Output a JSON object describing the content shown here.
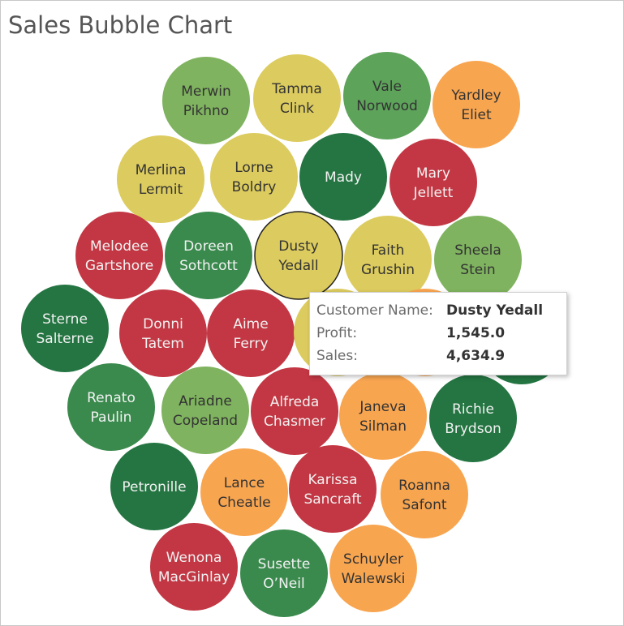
{
  "chart_data": {
    "type": "bubble",
    "title": "Sales Bubble Chart",
    "color_scale": [
      "#c23743",
      "#f8a550",
      "#dccb5e",
      "#7fb35f",
      "#3a8a4d",
      "#247542"
    ],
    "bubbles": [
      {
        "name": "Merwin Pikhno",
        "lines": [
          "Merwin",
          "Pikhno"
        ],
        "color": "#7fb35f"
      },
      {
        "name": "Tamma Clink",
        "lines": [
          "Tamma",
          "Clink"
        ],
        "color": "#dccb5e"
      },
      {
        "name": "Vale Norwood",
        "lines": [
          "Vale",
          "Norwood"
        ],
        "color": "#5da35a"
      },
      {
        "name": "Yardley Eliet",
        "lines": [
          "Yardley",
          "Eliet"
        ],
        "color": "#f8a550"
      },
      {
        "name": "Merlina Lermit",
        "lines": [
          "Merlina",
          "Lermit"
        ],
        "color": "#dccb5e"
      },
      {
        "name": "Lorne Boldry",
        "lines": [
          "Lorne",
          "Boldry"
        ],
        "color": "#dccb5e"
      },
      {
        "name": "Mady",
        "lines": [
          "Mady"
        ],
        "color": "#247542"
      },
      {
        "name": "Mary Jellett",
        "lines": [
          "Mary",
          "Jellett"
        ],
        "color": "#c23743"
      },
      {
        "name": "Melodee Gartshore",
        "lines": [
          "Melodee",
          "Gartshore"
        ],
        "color": "#c23743"
      },
      {
        "name": "Doreen Sothcott",
        "lines": [
          "Doreen",
          "Sothcott"
        ],
        "color": "#3a8a4d"
      },
      {
        "name": "Dusty Yedall",
        "lines": [
          "Dusty",
          "Yedall"
        ],
        "color": "#dccb5e",
        "selected": true
      },
      {
        "name": "Faith Grushin",
        "lines": [
          "Faith",
          "Grushin"
        ],
        "color": "#dccb5e"
      },
      {
        "name": "Sheela Stein",
        "lines": [
          "Sheela",
          "Stein"
        ],
        "color": "#7fb35f"
      },
      {
        "name": "Sterne Salterne",
        "lines": [
          "Sterne",
          "Salterne"
        ],
        "color": "#247542"
      },
      {
        "name": "Donni Tatem",
        "lines": [
          "Donni",
          "Tatem"
        ],
        "color": "#c23743"
      },
      {
        "name": "Aime Ferry",
        "lines": [
          "Aime",
          "Ferry"
        ],
        "color": "#c23743"
      },
      {
        "name": "",
        "lines": [],
        "color": "#dccb5e"
      },
      {
        "name": "",
        "lines": [],
        "color": "#f8a550"
      },
      {
        "name": "",
        "lines": [],
        "color": "#247542"
      },
      {
        "name": "Renato Paulin",
        "lines": [
          "Renato",
          "Paulin"
        ],
        "color": "#3a8a4d"
      },
      {
        "name": "Ariadne Copeland",
        "lines": [
          "Ariadne",
          "Copeland"
        ],
        "color": "#7fb35f"
      },
      {
        "name": "Alfreda Chasmer",
        "lines": [
          "Alfreda",
          "Chasmer"
        ],
        "color": "#c23743"
      },
      {
        "name": "Janeva Silman",
        "lines": [
          "Janeva",
          "Silman"
        ],
        "color": "#f8a550"
      },
      {
        "name": "Richie Brydson",
        "lines": [
          "Richie",
          "Brydson"
        ],
        "color": "#247542"
      },
      {
        "name": "Petronille",
        "lines": [
          "Petronille"
        ],
        "color": "#247542"
      },
      {
        "name": "Lance Cheatle",
        "lines": [
          "Lance",
          "Cheatle"
        ],
        "color": "#f8a550"
      },
      {
        "name": "Karissa Sancraft",
        "lines": [
          "Karissa",
          "Sancraft"
        ],
        "color": "#c23743"
      },
      {
        "name": "Roanna Safont",
        "lines": [
          "Roanna",
          "Safont"
        ],
        "color": "#f8a550"
      },
      {
        "name": "Wenona MacGinlay",
        "lines": [
          "Wenona",
          "MacGinlay"
        ],
        "color": "#c23743"
      },
      {
        "name": "Susette O'Neil",
        "lines": [
          "Susette",
          "O’Neil"
        ],
        "color": "#3a8a4d"
      },
      {
        "name": "Schuyler Walewski",
        "lines": [
          "Schuyler",
          "Walewski"
        ],
        "color": "#f8a550"
      }
    ],
    "tooltip": {
      "rows": [
        {
          "key": "Customer Name:",
          "value": "Dusty Yedall"
        },
        {
          "key": "Profit:",
          "value": "1,545.0"
        },
        {
          "key": "Sales:",
          "value": "4,634.9"
        }
      ]
    }
  }
}
